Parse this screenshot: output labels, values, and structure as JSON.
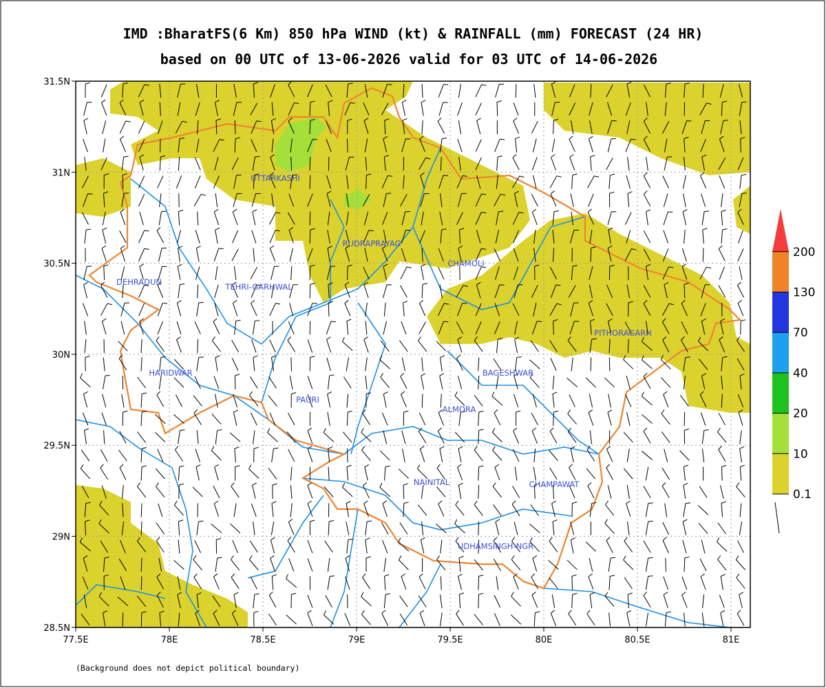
{
  "header": {
    "title": "IMD :BharatFS(6 Km) 850 hPa WIND (kt) & RAINFALL (mm) FORECAST (24 HR)",
    "subtitle": "based on 00 UTC of 13-06-2026 valid for 03 UTC of 14-06-2026"
  },
  "map": {
    "lat_ticks": [
      "31.5N",
      "31N",
      "30.5N",
      "30N",
      "29.5N",
      "29N",
      "28.5N"
    ],
    "lon_ticks": [
      "77.5E",
      "78E",
      "78.5E",
      "79E",
      "79.5E",
      "80E",
      "80.5E",
      "81E"
    ],
    "districts": [
      "UTTARKASHI",
      "RUDRAPRAYAG",
      "CHAMOLI",
      "DEHRADUN",
      "TEHRI-GARHWAL",
      "PITHORAGARH",
      "HARIDWAR",
      "BAGESHWAR",
      "PAURI",
      "ALMORA",
      "NAINITAL",
      "CHAMPAWAT",
      "UDHAMSINGH-NGR"
    ]
  },
  "legend": {
    "levels": [
      0.1,
      10,
      20,
      40,
      70,
      130,
      200
    ],
    "colors": [
      "#dcd22e",
      "#a5e03a",
      "#1ec21e",
      "#1ea0f0",
      "#2236e0",
      "#f08228",
      "#f53c3c"
    ]
  },
  "footnote": "(Background does not depict political boundary)"
}
